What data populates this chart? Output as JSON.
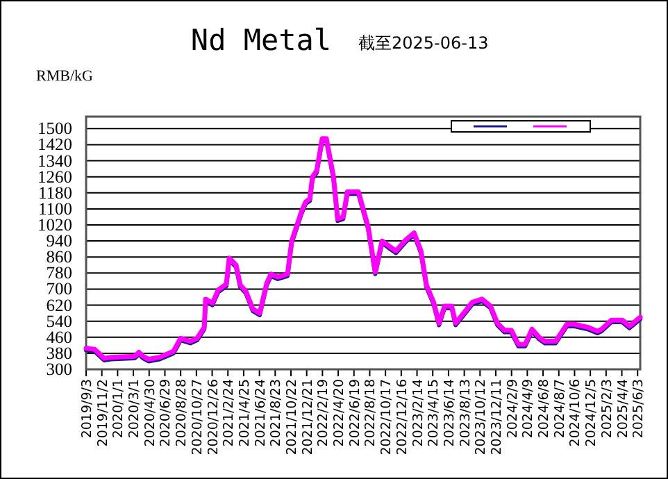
{
  "chart_data": {
    "type": "line",
    "title": "Nd Metal",
    "subtitle": "截至2025-06-13",
    "ylabel": "RMB/kG",
    "x": [
      "2019-09-03",
      "2019-10-05",
      "2019-11-11",
      "2019-12-07",
      "2020-03-06",
      "2020-03-22",
      "2020-04-07",
      "2020-04-28",
      "2020-06-09",
      "2020-08-01",
      "2020-08-28",
      "2020-10-04",
      "2020-10-30",
      "2020-11-26",
      "2020-12-01",
      "2020-12-27",
      "2021-01-18",
      "2021-02-18",
      "2021-03-01",
      "2021-03-27",
      "2021-04-12",
      "2021-05-03",
      "2021-05-30",
      "2021-06-25",
      "2021-07-22",
      "2021-08-07",
      "2021-09-02",
      "2021-10-09",
      "2021-10-25",
      "2021-12-01",
      "2021-12-17",
      "2022-01-02",
      "2022-01-12",
      "2022-01-28",
      "2022-02-18",
      "2022-03-06",
      "2022-04-02",
      "2022-04-18",
      "2022-05-09",
      "2022-05-25",
      "2022-07-06",
      "2022-07-27",
      "2022-08-12",
      "2022-09-08",
      "2022-10-04",
      "2022-10-30",
      "2022-11-26",
      "2023-01-02",
      "2023-02-03",
      "2023-03-01",
      "2023-03-22",
      "2023-04-18",
      "2023-05-09",
      "2023-05-30",
      "2023-06-26",
      "2023-07-11",
      "2023-08-17",
      "2023-09-13",
      "2023-10-20",
      "2023-11-21",
      "2023-12-17",
      "2024-01-13",
      "2024-02-08",
      "2024-03-06",
      "2024-04-01",
      "2024-04-27",
      "2024-05-24",
      "2024-06-14",
      "2024-07-26",
      "2024-09-07",
      "2024-10-03",
      "2024-11-25",
      "2025-01-01",
      "2025-01-17",
      "2025-02-23",
      "2025-04-06",
      "2025-05-03",
      "2025-06-13"
    ],
    "series": [
      {
        "color": "#1a1a8c",
        "values": [
          395,
          390,
          345,
          350,
          355,
          375,
          355,
          340,
          350,
          380,
          445,
          430,
          445,
          500,
          640,
          620,
          685,
          715,
          845,
          810,
          710,
          680,
          590,
          570,
          720,
          765,
          750,
          765,
          930,
          1075,
          1125,
          1140,
          1250,
          1280,
          1440,
          1440,
          1250,
          1040,
          1050,
          1175,
          1175,
          1075,
          1000,
          775,
          930,
          905,
          880,
          935,
          970,
          880,
          710,
          625,
          520,
          605,
          605,
          520,
          580,
          625,
          640,
          605,
          520,
          485,
          485,
          415,
          415,
          490,
          450,
          430,
          430,
          515,
          515,
          500,
          480,
          490,
          535,
          535,
          505,
          550
        ]
      },
      {
        "color": "#ff00ff",
        "values": [
          405,
          400,
          355,
          360,
          365,
          385,
          365,
          350,
          360,
          390,
          455,
          440,
          455,
          510,
          650,
          630,
          695,
          725,
          855,
          820,
          720,
          690,
          600,
          580,
          730,
          775,
          760,
          775,
          940,
          1085,
          1135,
          1150,
          1260,
          1290,
          1450,
          1450,
          1260,
          1050,
          1060,
          1185,
          1185,
          1085,
          1010,
          785,
          940,
          915,
          890,
          945,
          980,
          890,
          720,
          635,
          530,
          615,
          615,
          530,
          590,
          635,
          650,
          615,
          530,
          495,
          495,
          425,
          425,
          500,
          460,
          440,
          440,
          525,
          525,
          510,
          490,
          500,
          545,
          545,
          515,
          560
        ]
      }
    ],
    "xlim": [
      "2019-09-03",
      "2025-06-13"
    ],
    "xticks": [
      {
        "value": "2019-09-03",
        "label": "2019/9/3"
      },
      {
        "value": "2019-11-02",
        "label": "2019/11/2"
      },
      {
        "value": "2020-01-01",
        "label": "2020/1/1"
      },
      {
        "value": "2020-03-01",
        "label": "2020/3/1"
      },
      {
        "value": "2020-04-30",
        "label": "2020/4/30"
      },
      {
        "value": "2020-06-29",
        "label": "2020/6/29"
      },
      {
        "value": "2020-08-28",
        "label": "2020/8/28"
      },
      {
        "value": "2020-10-27",
        "label": "2020/10/27"
      },
      {
        "value": "2020-12-26",
        "label": "2020/12/26"
      },
      {
        "value": "2021-02-24",
        "label": "2021/2/24"
      },
      {
        "value": "2021-04-25",
        "label": "2021/4/25"
      },
      {
        "value": "2021-06-24",
        "label": "2021/6/24"
      },
      {
        "value": "2021-08-23",
        "label": "2021/8/23"
      },
      {
        "value": "2021-10-22",
        "label": "2021/10/22"
      },
      {
        "value": "2021-12-21",
        "label": "2021/12/21"
      },
      {
        "value": "2022-02-19",
        "label": "2022/2/19"
      },
      {
        "value": "2022-04-20",
        "label": "2022/4/20"
      },
      {
        "value": "2022-06-19",
        "label": "2022/6/19"
      },
      {
        "value": "2022-08-18",
        "label": "2022/8/18"
      },
      {
        "value": "2022-10-17",
        "label": "2022/10/17"
      },
      {
        "value": "2022-12-16",
        "label": "2022/12/16"
      },
      {
        "value": "2023-02-14",
        "label": "2023/2/14"
      },
      {
        "value": "2023-04-15",
        "label": "2023/4/15"
      },
      {
        "value": "2023-06-14",
        "label": "2023/6/14"
      },
      {
        "value": "2023-08-13",
        "label": "2023/8/13"
      },
      {
        "value": "2023-10-12",
        "label": "2023/10/12"
      },
      {
        "value": "2023-12-11",
        "label": "2023/12/11"
      },
      {
        "value": "2024-02-09",
        "label": "2024/2/9"
      },
      {
        "value": "2024-04-09",
        "label": "2024/4/9"
      },
      {
        "value": "2024-06-08",
        "label": "2024/6/8"
      },
      {
        "value": "2024-08-07",
        "label": "2024/8/7"
      },
      {
        "value": "2024-10-06",
        "label": "2024/10/6"
      },
      {
        "value": "2024-12-05",
        "label": "2024/12/5"
      },
      {
        "value": "2025-02-03",
        "label": "2025/2/3"
      },
      {
        "value": "2025-04-04",
        "label": "2025/4/4"
      },
      {
        "value": "2025-06-03",
        "label": "2025/6/3"
      }
    ],
    "ylim": [
      300,
      1560
    ],
    "yticks": [
      300,
      380,
      460,
      540,
      620,
      700,
      780,
      860,
      940,
      1020,
      1100,
      1180,
      1260,
      1340,
      1420,
      1500
    ],
    "grid": "y",
    "marker": "none",
    "line_style": "solid"
  }
}
